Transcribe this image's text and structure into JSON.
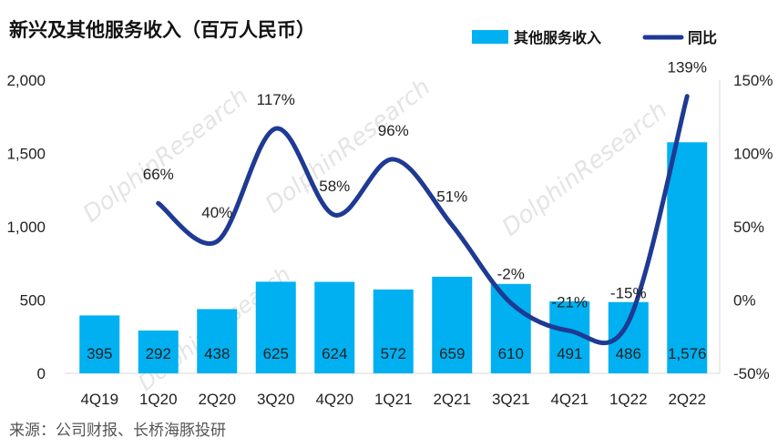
{
  "title": "新兴及其他服务收入（百万人民币）",
  "source": "来源：公司财报、长桥海豚投研",
  "colors": {
    "bar": "#00B0F0",
    "line": "#1F3A93"
  },
  "chart_data": {
    "type": "bar",
    "title": "新兴及其他服务收入（百万人民币）",
    "categories": [
      "4Q19",
      "1Q20",
      "2Q20",
      "3Q20",
      "4Q20",
      "1Q21",
      "2Q21",
      "3Q21",
      "4Q21",
      "1Q22",
      "2Q22"
    ],
    "series": [
      {
        "name": "其他服务收入",
        "type": "bar",
        "axis": "left",
        "values": [
          395,
          292,
          438,
          625,
          624,
          572,
          659,
          610,
          491,
          486,
          1576
        ],
        "labels": [
          "395",
          "292",
          "438",
          "625",
          "624",
          "572",
          "659",
          "610",
          "491",
          "486",
          "1,576"
        ]
      },
      {
        "name": "同比",
        "type": "line",
        "axis": "right",
        "values": [
          null,
          66,
          40,
          117,
          58,
          96,
          51,
          -2,
          -21,
          -15,
          139
        ],
        "labels": [
          "",
          "66%",
          "40%",
          "117%",
          "58%",
          "96%",
          "51%",
          "-2%",
          "-21%",
          "-15%",
          "139%"
        ]
      }
    ],
    "y_left": {
      "range": [
        0,
        2000
      ],
      "ticks": [
        0,
        500,
        1000,
        1500,
        2000
      ],
      "tick_labels": [
        "0",
        "500",
        "1,000",
        "1,500",
        "2,000"
      ]
    },
    "y_right": {
      "range": [
        -50,
        150
      ],
      "ticks": [
        -50,
        0,
        50,
        100,
        150
      ],
      "tick_labels": [
        "-50%",
        "0%",
        "50%",
        "100%",
        "150%"
      ]
    },
    "legend": {
      "position": "top-right",
      "entries": [
        "其他服务收入",
        "同比"
      ]
    },
    "grid": false
  }
}
